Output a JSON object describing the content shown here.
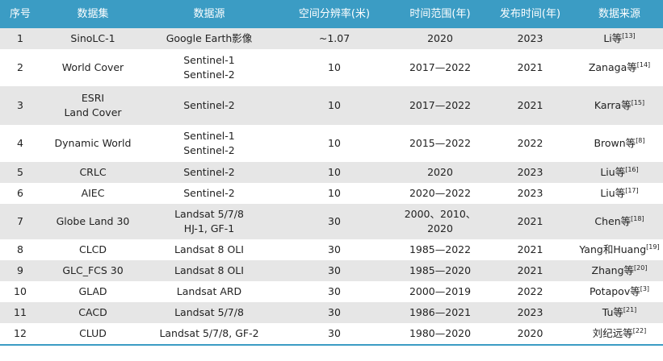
{
  "headers": [
    "序号",
    "数据集",
    "数据源",
    "空间分辨率(米)",
    "时间范围(年)",
    "发布时间(年)",
    "数据来源"
  ],
  "rows": [
    {
      "no": "1",
      "dataset": [
        "SinoLC-1"
      ],
      "source": [
        "Google Earth影像"
      ],
      "resolution": "~1.07",
      "range": "2020",
      "published": "2023",
      "author": "Li等",
      "ref": "[13]"
    },
    {
      "no": "2",
      "dataset": [
        "World Cover"
      ],
      "source": [
        "Sentinel-1",
        "Sentinel-2"
      ],
      "resolution": "10",
      "range": "2017—2022",
      "published": "2021",
      "author": "Zanaga等",
      "ref": "[14]"
    },
    {
      "no": "3",
      "dataset": [
        "ESRI",
        "Land Cover"
      ],
      "source": [
        "Sentinel-2"
      ],
      "resolution": "10",
      "range": "2017—2022",
      "published": "2021",
      "author": "Karra等",
      "ref": "[15]"
    },
    {
      "no": "4",
      "dataset": [
        "Dynamic World"
      ],
      "source": [
        "Sentinel-1",
        "Sentinel-2"
      ],
      "resolution": "10",
      "range": "2015—2022",
      "published": "2022",
      "author": "Brown等",
      "ref": "[8]"
    },
    {
      "no": "5",
      "dataset": [
        "CRLC"
      ],
      "source": [
        "Sentinel-2"
      ],
      "resolution": "10",
      "range": "2020",
      "published": "2023",
      "author": "Liu等",
      "ref": "[16]"
    },
    {
      "no": "6",
      "dataset": [
        "AIEC"
      ],
      "source": [
        "Sentinel-2"
      ],
      "resolution": "10",
      "range": "2020—2022",
      "published": "2023",
      "author": "Liu等",
      "ref": "[17]"
    },
    {
      "no": "7",
      "dataset": [
        "Globe Land 30"
      ],
      "source": [
        "Landsat 5/7/8",
        "HJ-1, GF-1"
      ],
      "resolution": "30",
      "range": "2000、2010、2020",
      "published": "2021",
      "author": "Chen等",
      "ref": "[18]"
    },
    {
      "no": "8",
      "dataset": [
        "CLCD"
      ],
      "source": [
        "Landsat 8 OLI"
      ],
      "resolution": "30",
      "range": "1985—2022",
      "published": "2021",
      "author": "Yang和Huang",
      "ref": "[19]"
    },
    {
      "no": "9",
      "dataset": [
        "GLC_FCS 30"
      ],
      "source": [
        "Landsat 8 OLI"
      ],
      "resolution": "30",
      "range": "1985—2020",
      "published": "2021",
      "author": "Zhang等",
      "ref": "[20]"
    },
    {
      "no": "10",
      "dataset": [
        "GLAD"
      ],
      "source": [
        "Landsat ARD"
      ],
      "resolution": "30",
      "range": "2000—2019",
      "published": "2022",
      "author": "Potapov等",
      "ref": "[3]"
    },
    {
      "no": "11",
      "dataset": [
        "CACD"
      ],
      "source": [
        "Landsat 5/7/8"
      ],
      "resolution": "30",
      "range": "1986—2021",
      "published": "2023",
      "author": "Tu等",
      "ref": "[21]"
    },
    {
      "no": "12",
      "dataset": [
        "CLUD"
      ],
      "source": [
        "Landsat 5/7/8, GF-2"
      ],
      "resolution": "30",
      "range": "1980—2020",
      "published": "2020",
      "author": "刘纪远等",
      "ref": "[22]"
    }
  ]
}
